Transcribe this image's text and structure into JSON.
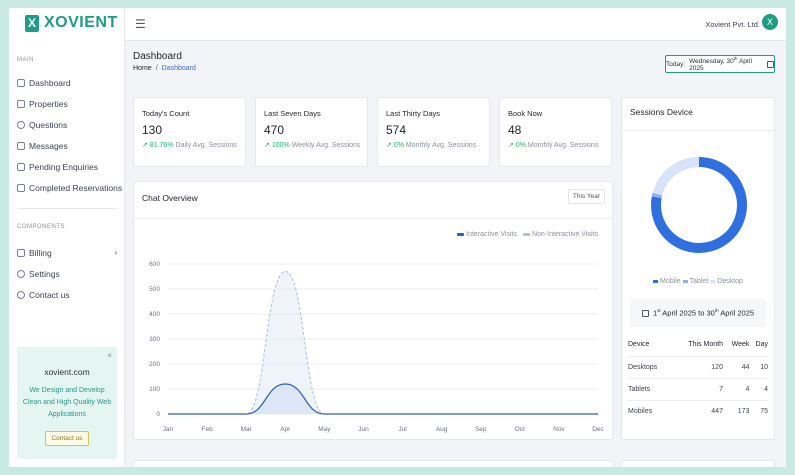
{
  "brand": {
    "logo_letter": "X",
    "name": "XOVIENT"
  },
  "sidebar": {
    "main_label": "MAIN",
    "main_items": [
      {
        "label": "Dashboard",
        "icon": "home-icon"
      },
      {
        "label": "Properties",
        "icon": "grid-icon"
      },
      {
        "label": "Questions",
        "icon": "database-icon"
      },
      {
        "label": "Messages",
        "icon": "file-icon"
      },
      {
        "label": "Pending Enquiries",
        "icon": "document-icon"
      },
      {
        "label": "Completed Reservations",
        "icon": "document-icon"
      }
    ],
    "components_label": "COMPONENTS",
    "component_items": [
      {
        "label": "Billing",
        "icon": "document-icon"
      },
      {
        "label": "Settings",
        "icon": "gear-icon"
      },
      {
        "label": "Contact us",
        "icon": "user-icon"
      }
    ],
    "promo": {
      "title": "xovient.com",
      "text": "We Design and Develop Clean and High Quality Web Applications",
      "button": "Contact us",
      "close": "×"
    }
  },
  "topbar": {
    "menu_icon": "☰",
    "company": "Xovient Pvt. Ltd.",
    "avatar_letter": "X"
  },
  "page": {
    "title": "Dashboard",
    "breadcrumb": {
      "home": "Home",
      "sep": "/",
      "current": "Dashboard"
    },
    "date": {
      "prefix": "Today:",
      "text_a": "Wednesday, 30",
      "sup": "th",
      "text_b": " April 2025"
    }
  },
  "stats": [
    {
      "title": "Today's Count",
      "value": "130",
      "pct": "81.76%",
      "label": "Daily Avg. Sessions"
    },
    {
      "title": "Last Seven Days",
      "value": "470",
      "pct": "100%",
      "label": "Weekly Avg. Sessions"
    },
    {
      "title": "Last Thirty Days",
      "value": "574",
      "pct": "0%",
      "label": "Monthly Avg. Sessions"
    },
    {
      "title": "Book Now",
      "value": "48",
      "pct": "0%",
      "label": "Monthly Avg. Sessions"
    }
  ],
  "trend_icon": "↗",
  "chart": {
    "title": "Chat Overview",
    "period_button": "This Year",
    "colors": {
      "interactive": "#2c5fb6",
      "non_interactive": "#a9bfe6"
    }
  },
  "chart_data": {
    "type": "area",
    "title": "Chat Overview",
    "categories": [
      "Jan",
      "Feb",
      "Mar",
      "Apr",
      "May",
      "Jun",
      "Jul",
      "Aug",
      "Sep",
      "Oct",
      "Nov",
      "Dec"
    ],
    "y_ticks": [
      0,
      100,
      200,
      300,
      400,
      500,
      600
    ],
    "ylim": [
      0,
      600
    ],
    "legend_position": "top-right",
    "grid": true,
    "series": [
      {
        "name": "Interactive Visits",
        "values": [
          0,
          0,
          0,
          120,
          0,
          0,
          0,
          0,
          0,
          0,
          0,
          0
        ]
      },
      {
        "name": "Non-Interactive Visits",
        "values": [
          0,
          0,
          0,
          570,
          0,
          0,
          0,
          0,
          0,
          0,
          0,
          0
        ]
      }
    ]
  },
  "sessions": {
    "title": "Sessions Device",
    "donut": [
      {
        "name": "Mobile",
        "value": 447,
        "color": "#2f6fe0"
      },
      {
        "name": "Tablet",
        "value": 7,
        "color": "#8fb1ee"
      },
      {
        "name": "Desktop",
        "value": 120,
        "color": "#d7e3f8"
      }
    ],
    "range": {
      "a": "1",
      "a_sup": "st",
      "b": " April 2025 to 30",
      "b_sup": "th",
      "c": " April 2025"
    },
    "table": {
      "headers": [
        "Device",
        "This Month",
        "Week",
        "Day"
      ],
      "rows": [
        [
          "Desktops",
          "120",
          "44",
          "10"
        ],
        [
          "Tablets",
          "7",
          "4",
          "4"
        ],
        [
          "Mobiles",
          "447",
          "173",
          "75"
        ]
      ]
    }
  }
}
